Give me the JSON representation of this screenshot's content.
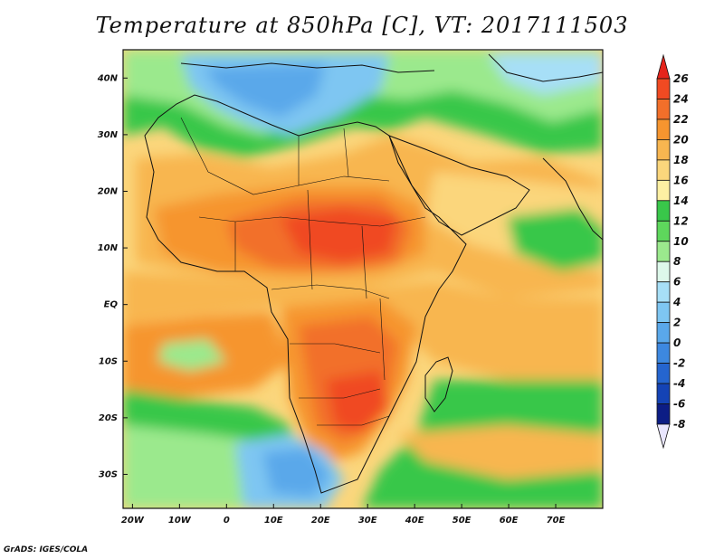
{
  "title": "Temperature at 850hPa [C], VT: 2017111503",
  "credit": "GrADS: IGES/COLA",
  "map": {
    "lon_labels": [
      "20W",
      "10W",
      "0",
      "10E",
      "20E",
      "30E",
      "40E",
      "50E",
      "60E",
      "70E"
    ],
    "lat_labels": [
      "40N",
      "30N",
      "20N",
      "10N",
      "EQ",
      "10S",
      "20S",
      "30S"
    ],
    "lon_range": [
      -22,
      80
    ],
    "lat_range": [
      -36,
      45
    ]
  },
  "colorbar": {
    "labels": [
      "26",
      "24",
      "22",
      "20",
      "18",
      "16",
      "14",
      "12",
      "10",
      "8",
      "6",
      "4",
      "2",
      "0",
      "-2",
      "-4",
      "-6",
      "-8"
    ],
    "colors": [
      "#e5241c",
      "#f04a22",
      "#f26f2a",
      "#f6952f",
      "#f8b650",
      "#fbd67c",
      "#fdf0a3",
      "#39c74a",
      "#5ed75c",
      "#9be98d",
      "#ddf8ea",
      "#a7dff7",
      "#7ec6f2",
      "#5aa8ea",
      "#3d88e0",
      "#2565cf",
      "#1443b5",
      "#0c1d85"
    ]
  }
}
